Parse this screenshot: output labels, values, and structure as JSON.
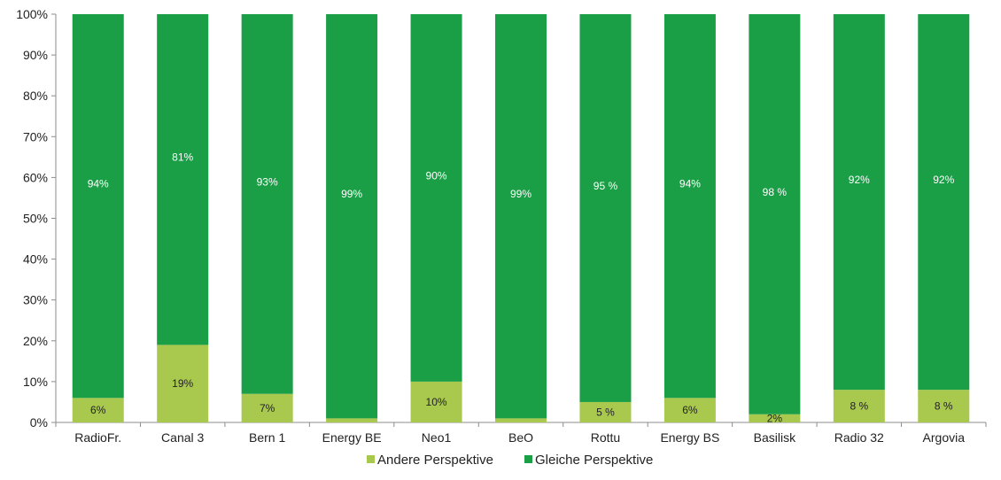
{
  "chart_data": {
    "type": "bar",
    "stacked": true,
    "orientation": "vertical",
    "categories": [
      "RadioFr.",
      "Canal 3",
      "Bern 1",
      "Energy BE",
      "Neo1",
      "BeO",
      "Rottu",
      "Energy BS",
      "Basilisk",
      "Radio 32",
      "Argovia"
    ],
    "series": [
      {
        "name": "Andere Perspektive",
        "color": "#a8c84e",
        "values": [
          6,
          19,
          7,
          1,
          10,
          1,
          5,
          6,
          2,
          8,
          8
        ],
        "labels": [
          "6%",
          "19%",
          "7%",
          "",
          "10%",
          "",
          "5 %",
          "6%",
          "2%",
          "8 %",
          "8 %"
        ]
      },
      {
        "name": "Gleiche Perspektive",
        "color": "#1a9e46",
        "values": [
          94,
          81,
          93,
          99,
          90,
          99,
          95,
          94,
          98,
          92,
          92
        ],
        "labels": [
          "94%",
          "81%",
          "93%",
          "99%",
          "90%",
          "99%",
          "95 %",
          "94%",
          "98 %",
          "92%",
          "92%"
        ]
      }
    ],
    "y_ticks": [
      "0%",
      "10%",
      "20%",
      "30%",
      "40%",
      "50%",
      "60%",
      "70%",
      "80%",
      "90%",
      "100%"
    ],
    "ylim": [
      0,
      100
    ],
    "grid": false,
    "legend_position": "bottom-center"
  }
}
